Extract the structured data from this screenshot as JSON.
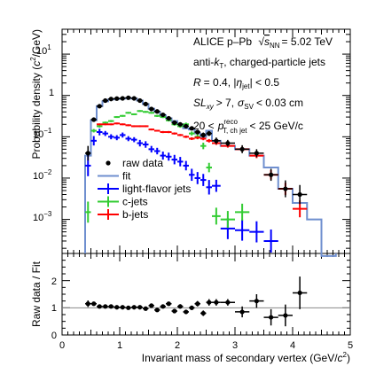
{
  "chart_data": [
    {
      "type": "histogram",
      "xlabel_parts": {
        "main": "Invariant mass of secondary vertex (GeV/",
        "sup": "2",
        "end": ")"
      },
      "ylabel_parts": {
        "main": "Probability density  (",
        "sup": "2",
        "end": "/GeV)"
      },
      "xlim": [
        0,
        5
      ],
      "ylim": [
        0.00015,
        40
      ],
      "yscale": "log",
      "y_ticks": [
        "10",
        "10",
        "10",
        "10"
      ],
      "y_tick_exponents": [
        "1",
        "−1",
        "−2",
        "−3"
      ],
      "y_tick_plain": [
        "1"
      ],
      "annotations": {
        "experiment": "ALICE p–Pb",
        "energy": "= 5.02 TeV",
        "algorithm": "anti-",
        "algorithm_end": ", charged-particle jets",
        "radius": "= 0.4, |",
        "radius_end": "| < 0.5",
        "displacement": "> 7,",
        "displacement_end": "< 0.03 cm",
        "pt_range_start": "20 <",
        "pt_range_end": "< 25 GeV/c",
        "pt_sup": "reco",
        "pt_sub": "T, ch jet"
      },
      "legend": [
        {
          "label": "raw data",
          "color": "#000000",
          "marker": "dot"
        },
        {
          "label": "fit",
          "color": "#6f8fcf",
          "marker": "line"
        },
        {
          "label": "light-flavor jets",
          "color": "#0000ff",
          "marker": "cross"
        },
        {
          "label": "c-jets",
          "color": "#33cc33",
          "marker": "cross"
        },
        {
          "label": "b-jets",
          "color": "#ff0000",
          "marker": "cross"
        }
      ],
      "fit": {
        "edges": [
          0.4,
          0.5,
          0.6,
          0.7,
          0.8,
          0.9,
          1.0,
          1.1,
          1.2,
          1.3,
          1.4,
          1.5,
          1.6,
          1.7,
          1.8,
          1.9,
          2.0,
          2.1,
          2.2,
          2.3,
          2.4,
          2.5,
          2.6,
          2.75,
          3.0,
          3.25,
          3.5,
          3.75,
          4.0,
          4.25,
          4.5,
          4.75
        ],
        "values": [
          0.035,
          0.25,
          0.55,
          0.72,
          0.8,
          0.82,
          0.84,
          0.86,
          0.84,
          0.75,
          0.62,
          0.48,
          0.4,
          0.33,
          0.28,
          0.24,
          0.2,
          0.16,
          0.15,
          0.12,
          0.1,
          0.14,
          0.08,
          0.06,
          0.05,
          0.035,
          0.018,
          0.0055,
          0.0025,
          0.001,
          0.00013
        ]
      },
      "series": [
        {
          "name": "raw data",
          "color": "#000000",
          "x": [
            0.45,
            0.55,
            0.65,
            0.75,
            0.85,
            0.95,
            1.05,
            1.15,
            1.25,
            1.35,
            1.45,
            1.55,
            1.65,
            1.75,
            1.85,
            1.95,
            2.05,
            2.15,
            2.25,
            2.35,
            2.45,
            2.55,
            2.675,
            2.875,
            3.125,
            3.375,
            3.625,
            3.875,
            4.125
          ],
          "y": [
            0.04,
            0.26,
            0.55,
            0.75,
            0.82,
            0.84,
            0.85,
            0.88,
            0.85,
            0.75,
            0.62,
            0.47,
            0.41,
            0.34,
            0.28,
            0.22,
            0.2,
            0.18,
            0.16,
            0.13,
            0.11,
            0.12,
            0.08,
            0.07,
            0.05,
            0.04,
            0.012,
            0.0055,
            0.004
          ],
          "xerr": [
            0.05,
            0.05,
            0.05,
            0.05,
            0.05,
            0.05,
            0.05,
            0.05,
            0.05,
            0.05,
            0.05,
            0.05,
            0.05,
            0.05,
            0.05,
            0.05,
            0.05,
            0.05,
            0.05,
            0.05,
            0.05,
            0.05,
            0.075,
            0.125,
            0.125,
            0.125,
            0.125,
            0.125,
            0.125
          ],
          "yerr_factor": [
            1.5,
            1.05,
            1.03,
            1.03,
            1.03,
            1.03,
            1.03,
            1.03,
            1.03,
            1.03,
            1.03,
            1.04,
            1.05,
            1.05,
            1.06,
            1.08,
            1.09,
            1.1,
            1.1,
            1.12,
            1.15,
            1.15,
            1.2,
            1.2,
            1.25,
            1.25,
            1.4,
            1.6,
            1.7
          ]
        },
        {
          "name": "light-flavor jets",
          "color": "#0000ff",
          "x": [
            0.45,
            0.55,
            0.65,
            0.75,
            0.85,
            0.95,
            1.05,
            1.15,
            1.25,
            1.35,
            1.45,
            1.55,
            1.65,
            1.75,
            1.85,
            1.95,
            2.05,
            2.15,
            2.25,
            2.35,
            2.45,
            2.55,
            2.675,
            2.875,
            3.125,
            3.375,
            3.625
          ],
          "y": [
            0.02,
            0.08,
            0.13,
            0.12,
            0.1,
            0.095,
            0.11,
            0.09,
            0.085,
            0.07,
            0.065,
            0.05,
            0.045,
            0.035,
            0.033,
            0.028,
            0.025,
            0.02,
            0.012,
            0.01,
            0.009,
            0.006,
            0.0065,
            0.0006,
            0.00055,
            0.0005,
            0.0003
          ],
          "xerr": [
            0.05,
            0.05,
            0.05,
            0.05,
            0.05,
            0.05,
            0.05,
            0.05,
            0.05,
            0.05,
            0.05,
            0.05,
            0.05,
            0.05,
            0.05,
            0.05,
            0.05,
            0.05,
            0.05,
            0.05,
            0.05,
            0.05,
            0.075,
            0.125,
            0.125,
            0.125,
            0.125
          ],
          "yerr_factor": [
            1.8,
            1.3,
            1.2,
            1.15,
            1.15,
            1.15,
            1.15,
            1.15,
            1.15,
            1.2,
            1.2,
            1.2,
            1.2,
            1.25,
            1.25,
            1.3,
            1.3,
            1.3,
            1.4,
            1.4,
            1.4,
            1.5,
            1.4,
            1.8,
            1.8,
            1.8,
            1.9
          ]
        },
        {
          "name": "c-jets",
          "color": "#33cc33",
          "x": [
            0.45,
            0.55,
            0.65,
            0.75,
            0.85,
            0.95,
            1.05,
            1.15,
            1.25,
            1.35,
            1.45,
            1.55,
            1.65,
            1.75,
            1.85,
            1.95,
            2.05,
            2.15,
            2.25,
            2.35,
            2.45,
            2.55,
            2.675,
            2.875,
            3.125
          ],
          "y": [
            0.0015,
            0.14,
            0.18,
            0.22,
            0.24,
            0.3,
            0.32,
            0.38,
            0.35,
            0.42,
            0.4,
            0.38,
            0.32,
            0.3,
            0.25,
            0.2,
            0.18,
            0.2,
            0.12,
            0.1,
            0.06,
            0.018,
            0.0012,
            0.001,
            0.0015
          ],
          "xerr": [
            0.05,
            0.05,
            0.05,
            0.05,
            0.05,
            0.05,
            0.05,
            0.05,
            0.05,
            0.05,
            0.05,
            0.05,
            0.05,
            0.05,
            0.05,
            0.05,
            0.05,
            0.05,
            0.05,
            0.05,
            0.05,
            0.05,
            0.075,
            0.125,
            0.125
          ],
          "yerr_factor": [
            1.8,
            1.1,
            1.08,
            1.06,
            1.06,
            1.05,
            1.05,
            1.05,
            1.05,
            1.05,
            1.05,
            1.05,
            1.06,
            1.06,
            1.07,
            1.08,
            1.09,
            1.1,
            1.12,
            1.15,
            1.2,
            1.3,
            1.6,
            1.6,
            1.6
          ]
        },
        {
          "name": "b-jets",
          "color": "#ff0000",
          "x": [
            0.65,
            0.75,
            0.85,
            0.95,
            1.05,
            1.15,
            1.25,
            1.35,
            1.45,
            1.55,
            1.65,
            1.75,
            1.85,
            1.95,
            2.05,
            2.15,
            2.25,
            2.35,
            2.45,
            2.55,
            2.675,
            2.875,
            3.125,
            3.375,
            3.625,
            3.875,
            4.125
          ],
          "y": [
            0.2,
            0.2,
            0.2,
            0.21,
            0.2,
            0.19,
            0.18,
            0.18,
            0.18,
            0.15,
            0.14,
            0.13,
            0.13,
            0.12,
            0.11,
            0.1,
            0.09,
            0.095,
            0.09,
            0.08,
            0.07,
            0.06,
            0.05,
            0.035,
            0.012,
            0.0055,
            0.0018
          ],
          "xerr": [
            0.05,
            0.05,
            0.05,
            0.05,
            0.05,
            0.05,
            0.05,
            0.05,
            0.05,
            0.05,
            0.05,
            0.05,
            0.05,
            0.05,
            0.05,
            0.05,
            0.05,
            0.05,
            0.05,
            0.05,
            0.075,
            0.125,
            0.125,
            0.125,
            0.125,
            0.125,
            0.125
          ],
          "yerr_factor": [
            1.05,
            1.05,
            1.05,
            1.05,
            1.05,
            1.05,
            1.05,
            1.05,
            1.05,
            1.05,
            1.05,
            1.06,
            1.06,
            1.06,
            1.06,
            1.07,
            1.08,
            1.08,
            1.09,
            1.1,
            1.1,
            1.1,
            1.15,
            1.15,
            1.3,
            1.4,
            1.6
          ]
        }
      ]
    },
    {
      "type": "scatter",
      "ylabel": "Raw data / Fit",
      "xlabel": "",
      "xlim": [
        0,
        5
      ],
      "ylim": [
        0,
        3
      ],
      "x_ticks": [
        "0",
        "1",
        "2",
        "3",
        "4",
        "5"
      ],
      "y_ticks": [
        "0",
        "1",
        "2"
      ],
      "reference_line": 1,
      "series": [
        {
          "name": "raw data",
          "color": "#000000",
          "x": [
            0.45,
            0.55,
            0.65,
            0.75,
            0.85,
            0.95,
            1.05,
            1.15,
            1.25,
            1.35,
            1.45,
            1.55,
            1.65,
            1.75,
            1.85,
            1.95,
            2.05,
            2.15,
            2.25,
            2.35,
            2.45,
            2.55,
            2.675,
            2.875,
            3.125,
            3.375,
            3.625,
            3.875,
            4.125
          ],
          "y": [
            1.15,
            1.15,
            1.05,
            1.05,
            1.05,
            1.02,
            1.02,
            1.0,
            1.02,
            1.02,
            0.97,
            1.08,
            0.92,
            1.05,
            1.15,
            0.88,
            1.05,
            0.85,
            1.0,
            1.15,
            0.8,
            1.2,
            1.2,
            1.2,
            0.85,
            1.25,
            0.65,
            0.72,
            1.55
          ],
          "xerr": [
            0.05,
            0.05,
            0.05,
            0.05,
            0.05,
            0.05,
            0.05,
            0.05,
            0.05,
            0.05,
            0.05,
            0.05,
            0.05,
            0.05,
            0.05,
            0.05,
            0.05,
            0.05,
            0.05,
            0.05,
            0.05,
            0.05,
            0.075,
            0.125,
            0.125,
            0.125,
            0.125,
            0.125,
            0.125
          ],
          "yerr": [
            0.12,
            0.05,
            0.03,
            0.03,
            0.03,
            0.03,
            0.03,
            0.03,
            0.03,
            0.03,
            0.03,
            0.04,
            0.05,
            0.05,
            0.05,
            0.05,
            0.08,
            0.08,
            0.08,
            0.1,
            0.1,
            0.12,
            0.12,
            0.12,
            0.2,
            0.25,
            0.3,
            0.4,
            0.6
          ]
        }
      ]
    }
  ]
}
